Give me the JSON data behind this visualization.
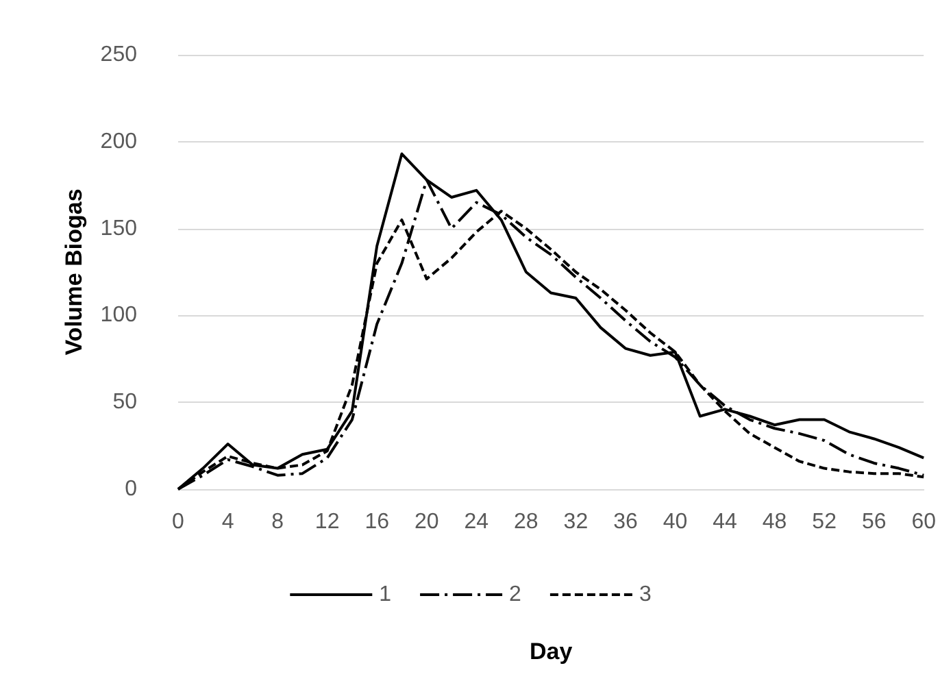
{
  "chart_data": {
    "type": "line",
    "xlabel": "Day",
    "ylabel": "Volume Biogas",
    "x": [
      0,
      2,
      4,
      6,
      8,
      10,
      12,
      14,
      16,
      18,
      20,
      22,
      24,
      26,
      28,
      30,
      32,
      34,
      36,
      38,
      40,
      42,
      44,
      46,
      48,
      50,
      52,
      54,
      56,
      58,
      60
    ],
    "series": [
      {
        "name": "1",
        "color": "#000000",
        "line_style": "solid",
        "values": [
          0,
          12,
          26,
          14,
          12,
          20,
          23,
          45,
          140,
          193,
          178,
          168,
          172,
          155,
          125,
          113,
          110,
          93,
          81,
          77,
          79,
          42,
          46,
          42,
          37,
          40,
          40,
          33,
          29,
          24,
          18
        ]
      },
      {
        "name": "2",
        "color": "#000000",
        "line_style": "dashdot",
        "values": [
          0,
          8,
          17,
          13,
          8,
          9,
          18,
          40,
          95,
          130,
          178,
          150,
          165,
          158,
          145,
          135,
          122,
          110,
          97,
          85,
          76,
          60,
          48,
          40,
          35,
          32,
          28,
          20,
          15,
          12,
          8
        ]
      },
      {
        "name": "3",
        "color": "#000000",
        "line_style": "dashed",
        "values": [
          0,
          10,
          19,
          15,
          12,
          14,
          22,
          60,
          130,
          155,
          121,
          133,
          148,
          160,
          150,
          138,
          125,
          115,
          103,
          90,
          79,
          60,
          45,
          32,
          24,
          16,
          12,
          10,
          9,
          9,
          7
        ]
      }
    ],
    "xlim": [
      0,
      60
    ],
    "xticks": [
      0,
      4,
      8,
      12,
      16,
      20,
      24,
      28,
      32,
      36,
      40,
      44,
      48,
      52,
      56,
      60
    ],
    "ylim": [
      0,
      250
    ],
    "yticks": [
      0,
      50,
      100,
      150,
      200,
      250
    ],
    "grid": "y",
    "legend": "bottom",
    "marker": "none"
  }
}
